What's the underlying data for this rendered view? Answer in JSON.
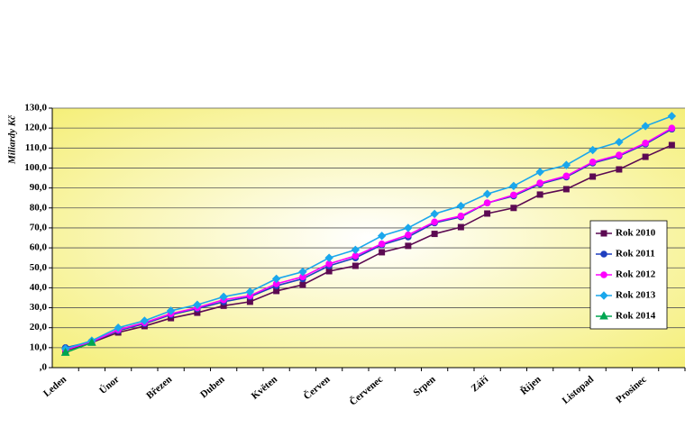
{
  "chart_data": {
    "type": "line",
    "y_label": "Miliardy Kč",
    "categories": [
      "Leden",
      null,
      "Únor",
      null,
      "Březen",
      null,
      "Duben",
      null,
      "Květen",
      null,
      "Červen",
      null,
      "Červenec",
      null,
      "Srpen",
      null,
      "Září",
      null,
      "Říjen",
      null,
      "Listopad",
      null,
      "Prosinec",
      null
    ],
    "series": [
      {
        "name": "Rok 2010",
        "color": "#5c0a52",
        "marker": "square",
        "values": [
          8.6,
          12.6,
          17.6,
          20.8,
          24.8,
          27.5,
          31,
          33,
          38.4,
          41.5,
          48.3,
          51,
          57.8,
          61,
          67,
          70.4,
          77.2,
          80,
          86.7,
          89.4,
          95.7,
          99.3,
          105.6,
          111.5
        ]
      },
      {
        "name": "Rok 2011",
        "color": "#1f3fbf",
        "marker": "circle",
        "values": [
          10,
          13,
          18.5,
          22,
          26.5,
          29.5,
          33,
          35.5,
          41,
          44.5,
          51,
          55,
          61.5,
          65.5,
          72.5,
          75.5,
          82.5,
          86,
          92,
          95.5,
          102.5,
          106,
          112,
          119.5
        ]
      },
      {
        "name": "Rok 2012",
        "color": "#ff00ff",
        "marker": "circle",
        "values": [
          9,
          13,
          19,
          22.5,
          27,
          30,
          34,
          36,
          42,
          45.5,
          52,
          56,
          62,
          66.5,
          73,
          76,
          82.5,
          86.5,
          92.5,
          96,
          103,
          106.5,
          112.5,
          120
        ]
      },
      {
        "name": "Rok 2013",
        "color": "#1aa7ec",
        "marker": "diamond",
        "values": [
          9.5,
          13.5,
          20,
          23.5,
          28.5,
          31.5,
          35.5,
          38,
          44.5,
          48,
          55,
          59,
          66,
          70,
          77,
          81,
          87,
          91,
          98,
          101.5,
          109,
          113,
          121,
          126
        ]
      },
      {
        "name": "Rok 2014",
        "color": "#00a651",
        "marker": "triangle",
        "values": [
          7.5,
          12.5,
          null,
          null,
          null,
          null,
          null,
          null,
          null,
          null,
          null,
          null,
          null,
          null,
          null,
          null,
          null,
          null,
          null,
          null,
          null,
          null,
          null,
          null
        ]
      }
    ],
    "ylim": [
      0,
      130
    ],
    "yticks": [
      {
        "value": 0,
        "label": ",0"
      },
      {
        "value": 10,
        "label": "10,0"
      },
      {
        "value": 20,
        "label": "20,0"
      },
      {
        "value": 30,
        "label": "30,0"
      },
      {
        "value": 40,
        "label": "40,0"
      },
      {
        "value": 50,
        "label": "50,0"
      },
      {
        "value": 60,
        "label": "60,0"
      },
      {
        "value": 70,
        "label": "70,0"
      },
      {
        "value": 80,
        "label": "80,0"
      },
      {
        "value": 90,
        "label": "90,0"
      },
      {
        "value": 100,
        "label": "100,0"
      },
      {
        "value": 110,
        "label": "110,0"
      },
      {
        "value": 120,
        "label": "120,0"
      },
      {
        "value": 130,
        "label": "130,0"
      }
    ],
    "grid": true,
    "legend": "right"
  }
}
